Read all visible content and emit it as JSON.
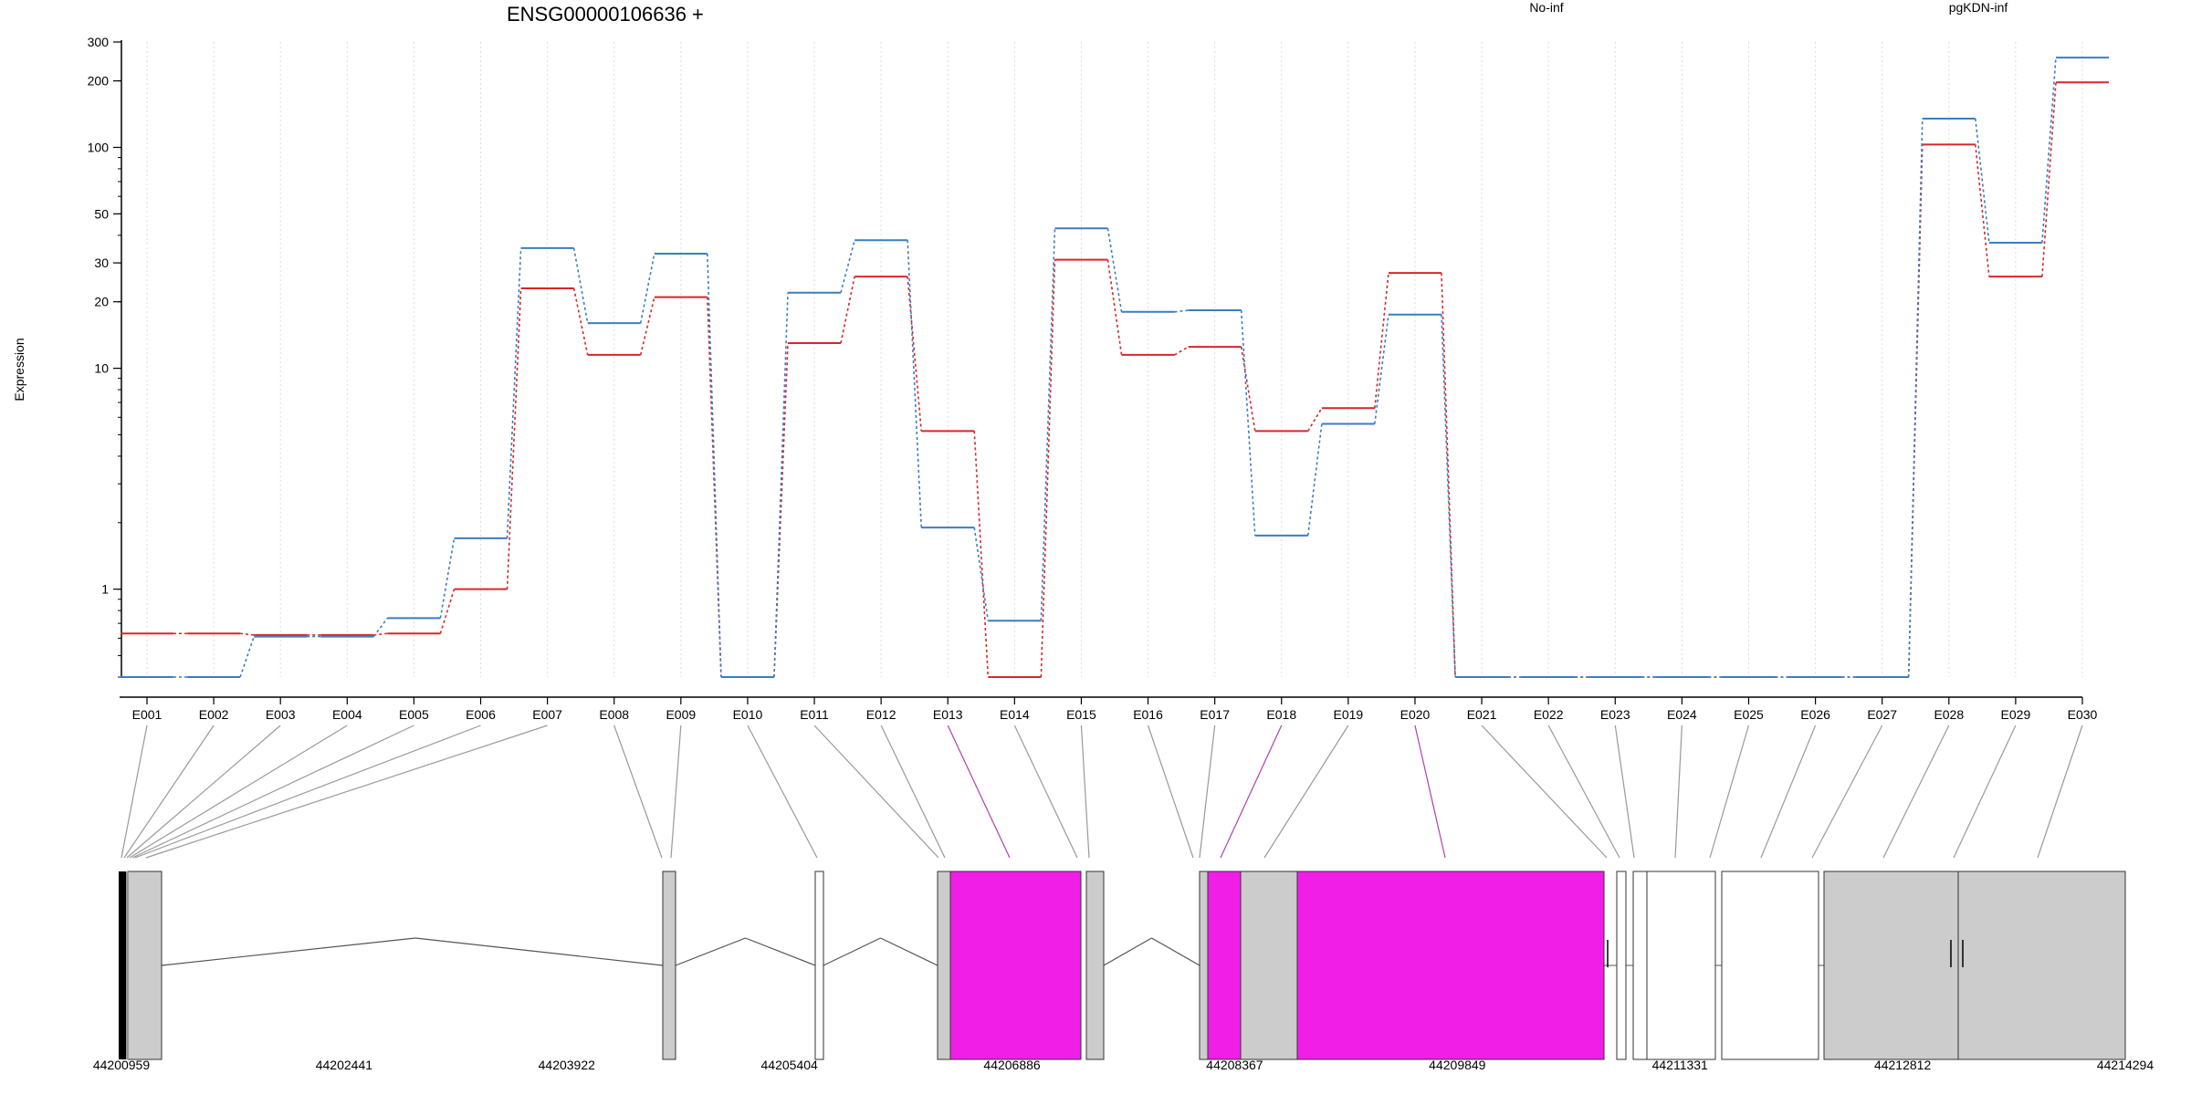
{
  "chart_data": {
    "type": "line",
    "title": "ENSG00000106636 +",
    "ylabel": "Expression",
    "xlabel": "",
    "y_scale": "log",
    "ylim": [
      0.4,
      300
    ],
    "grid": "vertical dotted lines at each exon",
    "legend_placement": "top",
    "y_ticks": [
      {
        "value": 1,
        "label": "1"
      },
      {
        "value": 10,
        "label": "10"
      },
      {
        "value": 20,
        "label": "20"
      },
      {
        "value": 30,
        "label": "30"
      },
      {
        "value": 50,
        "label": "50"
      },
      {
        "value": 100,
        "label": "100"
      },
      {
        "value": 200,
        "label": "200"
      },
      {
        "value": 300,
        "label": "300"
      }
    ],
    "categories": [
      "E001",
      "E002",
      "E003",
      "E004",
      "E005",
      "E006",
      "E007",
      "E008",
      "E009",
      "E010",
      "E011",
      "E012",
      "E013",
      "E014",
      "E015",
      "E016",
      "E017",
      "E018",
      "E019",
      "E020",
      "E021",
      "E022",
      "E023",
      "E024",
      "E025",
      "E026",
      "E027",
      "E028",
      "E029",
      "E030"
    ],
    "series": [
      {
        "name": "No-inf",
        "color": "#d62728",
        "values": [
          0.63,
          0.63,
          0.62,
          0.62,
          0.63,
          1.0,
          23,
          11.5,
          21,
          0.4,
          13,
          26,
          5.2,
          0.4,
          31,
          11.5,
          12.5,
          5.2,
          6.6,
          27,
          0.4,
          0.4,
          0.4,
          0.4,
          0.4,
          0.4,
          0.4,
          103,
          26,
          197
        ]
      },
      {
        "name": "pgKDN-inf",
        "color": "#3a7dc2",
        "values": [
          0.4,
          0.4,
          0.61,
          0.61,
          0.74,
          1.7,
          35,
          16,
          33,
          0.4,
          22,
          38,
          1.9,
          0.72,
          43,
          18,
          18.3,
          1.75,
          5.6,
          17.5,
          0.4,
          0.4,
          0.4,
          0.4,
          0.4,
          0.4,
          0.4,
          135,
          37,
          255
        ]
      }
    ],
    "gene_model": {
      "coordinate_labels": [
        "44200959",
        "44202441",
        "44203922",
        "44205404",
        "44206886",
        "44208367",
        "44209849",
        "44211331",
        "44212812",
        "44214294"
      ],
      "highlighted_exons": [
        "E013",
        "E018",
        "E020"
      ],
      "highlight_color": "#f11ee8",
      "exon_color": "#cccccc",
      "connector_color": "#999999"
    }
  }
}
